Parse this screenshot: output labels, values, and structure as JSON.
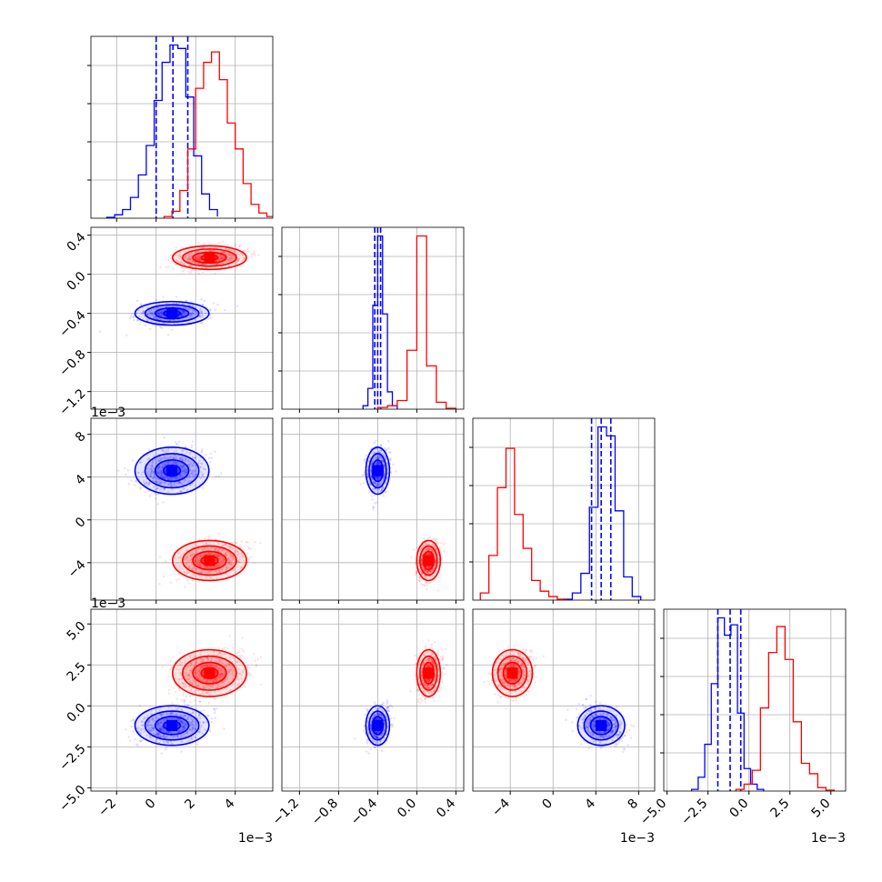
{
  "chart_data": {
    "type": "corner",
    "title": "",
    "grid": true,
    "offset_label": "1e−3",
    "colors": {
      "blue": "#0000ff",
      "red": "#ff0000"
    },
    "parameters": [
      {
        "lim": [
          -3.3,
          5.9
        ],
        "ticks": [
          -2,
          0,
          2,
          4
        ],
        "tick_labels": [
          "−2",
          "0",
          "2",
          "4"
        ],
        "scale": "1e−3"
      },
      {
        "lim": [
          -1.38,
          0.48
        ],
        "ticks": [
          -1.2,
          -0.8,
          -0.4,
          0.0,
          0.4
        ],
        "tick_labels": [
          "−1.2",
          "−0.8",
          "−0.4",
          "0.0",
          "0.4"
        ],
        "scale": ""
      },
      {
        "lim": [
          -7.5,
          9.5
        ],
        "ticks": [
          -4,
          0,
          4,
          8
        ],
        "tick_labels": [
          "−4",
          "0",
          "4",
          "8"
        ],
        "scale": "1e−3"
      },
      {
        "lim": [
          -5.2,
          5.9
        ],
        "ticks": [
          -5.0,
          -2.5,
          0.0,
          2.5,
          5.0
        ],
        "tick_labels": [
          "−5.0",
          "−2.5",
          "0.0",
          "2.5",
          "5.0"
        ],
        "scale": "1e−3"
      }
    ],
    "series": [
      {
        "color": "#0000ff",
        "quantile_lines": true,
        "hists": [
          {
            "edges": [
              -2.5,
              -2.1,
              -1.7,
              -1.3,
              -0.9,
              -0.5,
              -0.1,
              0.3,
              0.7,
              1.1,
              1.5,
              1.9,
              2.3,
              2.7,
              3.1
            ],
            "counts": [
              0.005,
              0.02,
              0.05,
              0.12,
              0.25,
              0.42,
              0.68,
              0.9,
              1.0,
              0.98,
              0.7,
              0.36,
              0.14,
              0.05,
              0.01
            ],
            "quantiles": [
              0.0,
              0.85,
              1.6
            ]
          },
          {
            "edges": [
              -0.55,
              -0.5,
              -0.45,
              -0.4,
              -0.35,
              -0.3,
              -0.25,
              -0.2
            ],
            "counts": [
              0.02,
              0.12,
              0.6,
              1.0,
              0.55,
              0.1,
              0.02
            ],
            "quantiles": [
              -0.43,
              -0.4,
              -0.37
            ]
          },
          {
            "edges": [
              1.0,
              1.8,
              2.6,
              3.4,
              4.2,
              5.0,
              5.8,
              6.6,
              7.4,
              8.2
            ],
            "counts": [
              0.005,
              0.04,
              0.15,
              0.52,
              0.97,
              0.92,
              0.5,
              0.13,
              0.02
            ],
            "quantiles": [
              3.6,
              4.5,
              5.4
            ]
          },
          {
            "edges": [
              -3.5,
              -3.1,
              -2.7,
              -2.3,
              -1.9,
              -1.5,
              -1.1,
              -0.7,
              -0.3,
              0.1,
              0.5,
              0.9
            ],
            "counts": [
              0.01,
              0.08,
              0.27,
              0.62,
              1.0,
              0.9,
              0.96,
              0.45,
              0.13,
              0.04,
              0.01
            ],
            "quantiles": [
              -1.9,
              -1.15,
              -0.5
            ]
          }
        ],
        "peaks": [
          [
            0.8,
            -0.4
          ],
          [
            0.8,
            4.6
          ],
          [
            -0.4,
            4.6
          ],
          [
            0.8,
            -1.2
          ],
          [
            -0.4,
            -1.2
          ],
          [
            4.5,
            -1.2
          ]
        ]
      },
      {
        "color": "#ff0000",
        "quantile_lines": false,
        "hists": [
          {
            "edges": [
              0.4,
              0.8,
              1.2,
              1.6,
              2.0,
              2.4,
              2.8,
              3.2,
              3.6,
              4.0,
              4.4,
              4.8,
              5.2,
              5.6,
              6.0
            ],
            "counts": [
              0.01,
              0.04,
              0.16,
              0.4,
              0.75,
              0.9,
              0.96,
              0.8,
              0.55,
              0.4,
              0.2,
              0.08,
              0.03,
              0.01
            ],
            "quantiles": []
          },
          {
            "edges": [
              -0.4,
              -0.3,
              -0.2,
              -0.1,
              0.0,
              0.1,
              0.2,
              0.3,
              0.4
            ],
            "counts": [
              0.01,
              0.02,
              0.05,
              0.34,
              1.0,
              0.25,
              0.04,
              0.005
            ],
            "quantiles": []
          },
          {
            "edges": [
              -6.8,
              -6.0,
              -5.2,
              -4.4,
              -3.6,
              -2.8,
              -2.0,
              -1.2,
              -0.4,
              0.4,
              1.2
            ],
            "counts": [
              0.04,
              0.25,
              0.63,
              0.85,
              0.48,
              0.29,
              0.11,
              0.05,
              0.02,
              0.005
            ],
            "quantiles": []
          },
          {
            "edges": [
              -0.8,
              -0.3,
              0.2,
              0.7,
              1.2,
              1.7,
              2.2,
              2.7,
              3.2,
              3.7,
              4.2,
              4.7,
              5.2
            ],
            "counts": [
              0.01,
              0.04,
              0.12,
              0.48,
              0.8,
              0.95,
              0.76,
              0.4,
              0.16,
              0.1,
              0.02,
              0.005
            ],
            "quantiles": []
          }
        ],
        "peaks": [
          [
            2.7,
            0.17
          ],
          [
            2.7,
            -3.8
          ],
          [
            0.12,
            -3.8
          ],
          [
            2.7,
            2.0
          ],
          [
            0.12,
            2.0
          ],
          [
            -3.8,
            2.0
          ]
        ]
      }
    ]
  }
}
